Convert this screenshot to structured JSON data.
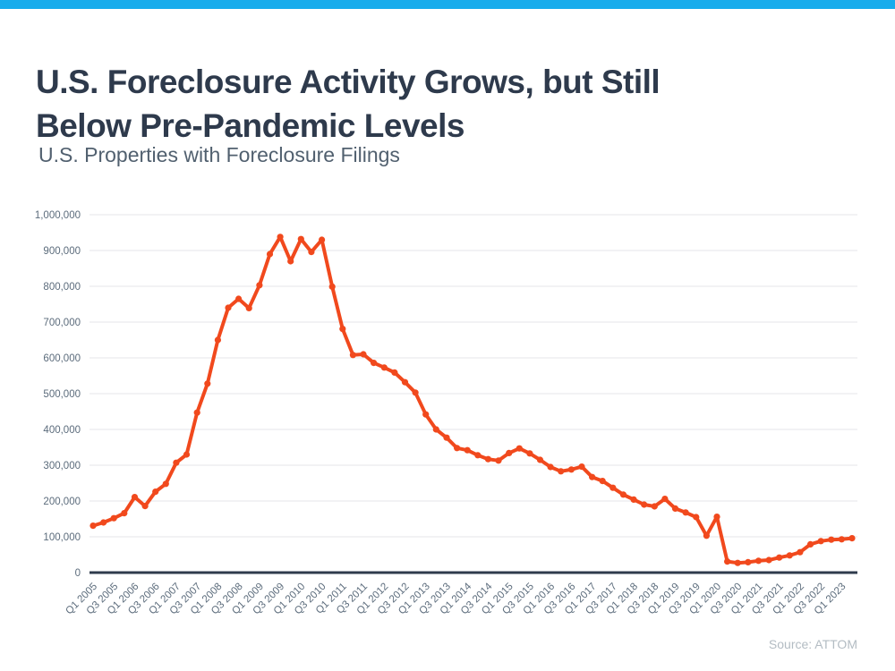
{
  "page": {
    "topbar_color": "#18ACEC",
    "title": "U.S. Foreclosure Activity Grows, but Still Below Pre-Pandemic Levels",
    "title_line1": "U.S. Foreclosure Activity Grows, but Still",
    "title_line2": "Below Pre-Pandemic Levels",
    "subtitle": "U.S. Properties with Foreclosure Filings",
    "source": "Source: ATTOM",
    "title_color": "#2E3A4C",
    "subtitle_color": "#51606F",
    "source_color": "#B3BCC3"
  },
  "chart_data": {
    "type": "line",
    "title": "U.S. Properties with Foreclosure Filings",
    "xlabel": "",
    "ylabel": "",
    "ylim": [
      0,
      1000000
    ],
    "grid": "horizontal",
    "legend": "none",
    "line_color": "#F1491D",
    "axis_text_color": "#5C6C7C",
    "grid_color": "#E4E5E9",
    "zero_axis_color": "#2F3B4C",
    "y_tick_labels": [
      "0",
      "100,000",
      "200,000",
      "300,000",
      "400,000",
      "500,000",
      "600,000",
      "700,000",
      "800,000",
      "900,000",
      "1,000,000"
    ],
    "y_tick_values": [
      0,
      100000,
      200000,
      300000,
      400000,
      500000,
      600000,
      700000,
      800000,
      900000,
      1000000
    ],
    "x_label_every": 2,
    "categories": [
      "Q1 2005",
      "Q2 2005",
      "Q3 2005",
      "Q4 2005",
      "Q1 2006",
      "Q2 2006",
      "Q3 2006",
      "Q4 2006",
      "Q1 2007",
      "Q2 2007",
      "Q3 2007",
      "Q4 2007",
      "Q1 2008",
      "Q2 2008",
      "Q3 2008",
      "Q4 2008",
      "Q1 2009",
      "Q2 2009",
      "Q3 2009",
      "Q4 2009",
      "Q1 2010",
      "Q2 2010",
      "Q3 2010",
      "Q4 2010",
      "Q1 2011",
      "Q2 2011",
      "Q3 2011",
      "Q4 2011",
      "Q1 2012",
      "Q2 2012",
      "Q3 2012",
      "Q4 2012",
      "Q1 2013",
      "Q2 2013",
      "Q3 2013",
      "Q4 2013",
      "Q1 2014",
      "Q2 2014",
      "Q3 2014",
      "Q4 2014",
      "Q1 2015",
      "Q2 2015",
      "Q3 2015",
      "Q4 2015",
      "Q1 2016",
      "Q2 2016",
      "Q3 2016",
      "Q4 2016",
      "Q1 2017",
      "Q2 2017",
      "Q3 2017",
      "Q4 2017",
      "Q1 2018",
      "Q2 2018",
      "Q3 2018",
      "Q4 2018",
      "Q1 2019",
      "Q2 2019",
      "Q3 2019",
      "Q4 2019",
      "Q1 2020",
      "Q2 2020",
      "Q3 2020",
      "Q4 2020",
      "Q1 2021",
      "Q2 2021",
      "Q3 2021",
      "Q4 2021",
      "Q1 2022",
      "Q2 2022",
      "Q3 2022",
      "Q4 2022",
      "Q1 2023",
      "Q2 2023"
    ],
    "values": [
      131000,
      140000,
      152000,
      166000,
      211000,
      186000,
      226000,
      248000,
      307000,
      330000,
      447000,
      528000,
      650000,
      740000,
      765000,
      739000,
      803000,
      890000,
      938000,
      870000,
      932000,
      896000,
      930000,
      799000,
      681000,
      608000,
      610000,
      586000,
      573000,
      559000,
      532000,
      503000,
      442000,
      400000,
      377000,
      348000,
      342000,
      328000,
      317000,
      313000,
      334000,
      347000,
      333000,
      315000,
      295000,
      283000,
      288000,
      296000,
      267000,
      256000,
      237000,
      218000,
      204000,
      190000,
      185000,
      206000,
      179000,
      168000,
      155000,
      103000,
      156000,
      31000,
      27000,
      29000,
      33000,
      35000,
      42000,
      48000,
      57000,
      79000,
      88000,
      92000,
      93000,
      96000
    ]
  }
}
